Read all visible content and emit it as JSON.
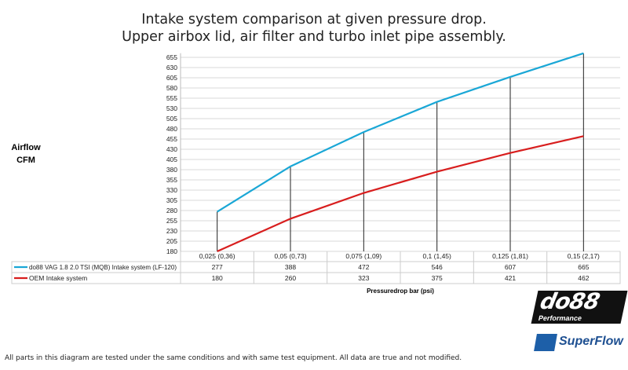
{
  "chart_data": {
    "type": "line",
    "title": [
      "Intake system comparison at given pressure drop.",
      "Upper airbox lid, air filter and turbo inlet pipe assembly."
    ],
    "ylabel": [
      "Airflow",
      "CFM"
    ],
    "xlabel": "Pressuredrop bar (psi)",
    "categories": [
      "0,025 (0,36)",
      "0,05 (0,73)",
      "0,075 (1,09)",
      "0,1 (1,45)",
      "0,125 (1,81)",
      "0,15 (2,17)"
    ],
    "yticks": [
      180,
      205,
      230,
      255,
      280,
      305,
      330,
      355,
      380,
      405,
      430,
      455,
      480,
      505,
      530,
      555,
      580,
      605,
      630,
      655
    ],
    "ylim": [
      180,
      665
    ],
    "grid": true,
    "legend": "table-below",
    "series": [
      {
        "name": "do88 VAG 1.8 2.0 TSI (MQB) Intake system (LF-120)",
        "values": [
          277,
          388,
          472,
          546,
          607,
          665
        ],
        "color": "#1aa7d6"
      },
      {
        "name": "OEM Intake system",
        "values": [
          180,
          260,
          323,
          375,
          421,
          462
        ],
        "color": "#d81e1e"
      }
    ]
  },
  "footer": "All parts in this diagram are tested under the same conditions and with same test equipment. All data are true and not modified.",
  "logos": {
    "do88": "do88",
    "do88_sub": "Performance",
    "superflow": "SuperFlow"
  }
}
